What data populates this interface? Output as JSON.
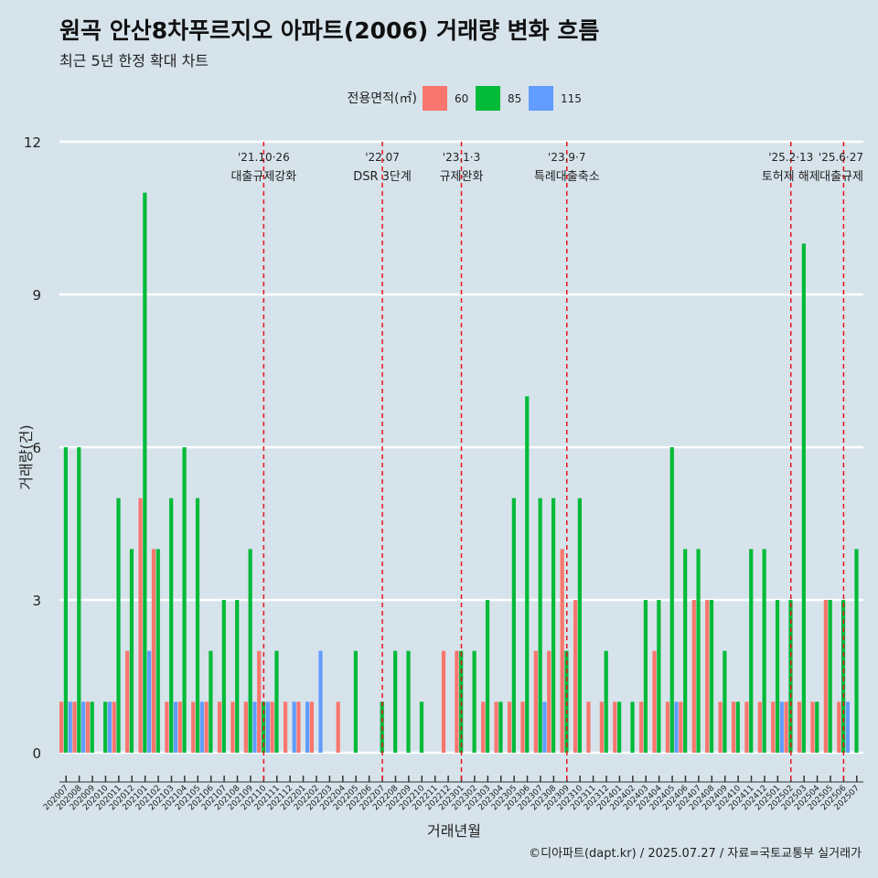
{
  "title": "원곡 안산8차푸르지오 아파트(2006) 거래량 변화 흐름",
  "subtitle": "최근 5년 한정 확대 차트",
  "caption": "©디아파트(dapt.kr) / 2025.07.27 / 자료=국토교통부 실거래가",
  "chart_data": {
    "type": "bar",
    "xlabel": "거래년월",
    "ylabel": "거래량(건)",
    "ylim": [
      0,
      12
    ],
    "yticks": [
      0,
      3,
      6,
      9,
      12
    ],
    "grid": true,
    "legend": {
      "title": "전용면적(㎡)",
      "position": "top"
    },
    "colors": {
      "60": "#f8766d",
      "85": "#00ba38",
      "115": "#619cff"
    },
    "x": [
      "202007",
      "202008",
      "202009",
      "202010",
      "202011",
      "202012",
      "202101",
      "202102",
      "202103",
      "202104",
      "202105",
      "202106",
      "202107",
      "202108",
      "202109",
      "202110",
      "202111",
      "202112",
      "202201",
      "202202",
      "202203",
      "202204",
      "202205",
      "202206",
      "202207",
      "202208",
      "202209",
      "202210",
      "202211",
      "202212",
      "202301",
      "202302",
      "202303",
      "202304",
      "202305",
      "202306",
      "202307",
      "202308",
      "202309",
      "202310",
      "202311",
      "202312",
      "202401",
      "202402",
      "202403",
      "202404",
      "202405",
      "202406",
      "202407",
      "202408",
      "202409",
      "202410",
      "202411",
      "202412",
      "202501",
      "202502",
      "202503",
      "202504",
      "202505",
      "202506",
      "202507"
    ],
    "series": [
      {
        "name": "60",
        "values": [
          1,
          1,
          1,
          0,
          1,
          2,
          5,
          4,
          1,
          1,
          1,
          1,
          1,
          1,
          1,
          2,
          1,
          1,
          1,
          1,
          0,
          1,
          0,
          0,
          0,
          0,
          0,
          0,
          0,
          2,
          2,
          0,
          1,
          1,
          1,
          1,
          2,
          2,
          4,
          3,
          1,
          1,
          1,
          0,
          1,
          2,
          1,
          1,
          3,
          3,
          1,
          1,
          1,
          1,
          1,
          1,
          1,
          1,
          3,
          1,
          0
        ]
      },
      {
        "name": "85",
        "values": [
          6,
          6,
          1,
          1,
          5,
          4,
          11,
          4,
          5,
          6,
          5,
          2,
          3,
          3,
          4,
          1,
          2,
          0,
          0,
          0,
          0,
          0,
          2,
          0,
          1,
          2,
          2,
          1,
          0,
          0,
          2,
          2,
          3,
          1,
          5,
          7,
          5,
          5,
          2,
          5,
          0,
          2,
          1,
          1,
          3,
          3,
          6,
          4,
          4,
          3,
          2,
          1,
          4,
          4,
          3,
          3,
          10,
          1,
          3,
          3,
          4
        ]
      },
      {
        "name": "115",
        "values": [
          1,
          1,
          0,
          1,
          0,
          0,
          2,
          0,
          1,
          0,
          1,
          0,
          0,
          0,
          1,
          1,
          0,
          1,
          1,
          2,
          0,
          0,
          0,
          0,
          0,
          0,
          0,
          0,
          0,
          0,
          0,
          0,
          0,
          0,
          0,
          0,
          1,
          0,
          0,
          0,
          0,
          0,
          0,
          0,
          0,
          0,
          1,
          0,
          0,
          0,
          0,
          0,
          0,
          0,
          1,
          0,
          0,
          0,
          0,
          1,
          0
        ]
      }
    ],
    "annotations": [
      {
        "x": "202110",
        "date": "'21.10·26",
        "label": "대출규제강화"
      },
      {
        "x": "202207",
        "date": "'22.07",
        "label": "DSR 3단계"
      },
      {
        "x": "202301",
        "date": "'23.1·3",
        "label": "규제완화"
      },
      {
        "x": "202309",
        "date": "'23.9·7",
        "label": "특례대출축소"
      },
      {
        "x": "202502",
        "date": "'25.2·13",
        "label": "토허제 해제"
      },
      {
        "x": "202506",
        "date": "'25.6·27",
        "label": "대출규제"
      }
    ]
  }
}
